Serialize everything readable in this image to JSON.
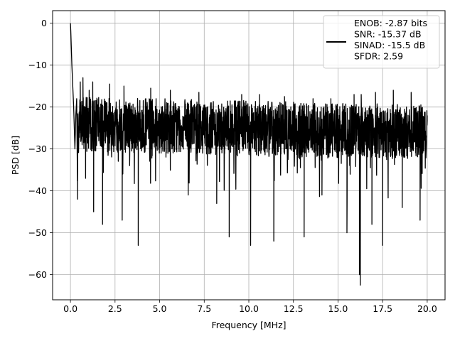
{
  "chart_data": {
    "type": "line",
    "xlabel": "Frequency [MHz]",
    "ylabel": "PSD [dB]",
    "xlim": [
      -1.0,
      21.0
    ],
    "ylim": [
      -66,
      3
    ],
    "xticks": [
      0.0,
      2.5,
      5.0,
      7.5,
      10.0,
      12.5,
      15.0,
      17.5,
      20.0
    ],
    "xtick_labels": [
      "0.0",
      "2.5",
      "5.0",
      "7.5",
      "10.0",
      "12.5",
      "15.0",
      "17.5",
      "20.0"
    ],
    "yticks": [
      0,
      -10,
      -20,
      -30,
      -40,
      -50,
      -60
    ],
    "ytick_labels": [
      "0",
      "−10",
      "−20",
      "−30",
      "−40",
      "−50",
      "−60"
    ],
    "grid": true,
    "legend_position": "top-right",
    "line_color": "#000000",
    "series": [
      {
        "legend_lines": [
          "ENOB: -2.87 bits",
          "SNR: -15.37 dB",
          "SINAD: -15.5 dB",
          "SFDR: 2.59"
        ],
        "noise_floor_db": [
          -24,
          -26
        ],
        "x": [
          0.0,
          0.02,
          0.05,
          0.08,
          0.12,
          0.18,
          0.25,
          0.3,
          0.35,
          0.4,
          0.55,
          0.7,
          0.85,
          1.05,
          1.25,
          1.3,
          1.8,
          2.2,
          2.9,
          3.0,
          3.8,
          4.5,
          5.6,
          6.6,
          7.2,
          8.2,
          8.9,
          9.6,
          10.1,
          10.6,
          11.4,
          12.0,
          13.1,
          13.6,
          14.1,
          14.6,
          15.5,
          15.9,
          16.2,
          16.25,
          16.3,
          16.9,
          17.1,
          17.5,
          18.1,
          18.6,
          19.1,
          19.6,
          20.0
        ],
        "y": [
          0.0,
          -2.0,
          -6.0,
          -10.0,
          -14.0,
          -20.0,
          -30.0,
          -22.0,
          -18.0,
          -42.0,
          -14.0,
          -13.0,
          -37.0,
          -16.0,
          -14.0,
          -45.0,
          -48.0,
          -14.5,
          -47.0,
          -15.0,
          -53.0,
          -15.5,
          -16.0,
          -41.0,
          -16.5,
          -43.0,
          -51.0,
          -17.0,
          -53.0,
          -17.0,
          -52.0,
          -17.5,
          -51.0,
          -18.0,
          -41.0,
          -18.0,
          -50.0,
          -17.0,
          -60.0,
          -62.5,
          -17.0,
          -48.0,
          -16.5,
          -53.0,
          -16.0,
          -44.0,
          -16.5,
          -47.0,
          -22.0
        ]
      }
    ]
  }
}
